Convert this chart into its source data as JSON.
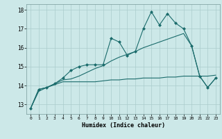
{
  "title": "",
  "xlabel": "Humidex (Indice chaleur)",
  "bg_color": "#cce8e8",
  "grid_color": "#aacccc",
  "line_color": "#1a6b6b",
  "xlim": [
    -0.5,
    23.5
  ],
  "ylim": [
    12.5,
    18.3
  ],
  "yticks": [
    13,
    14,
    15,
    16,
    17,
    18
  ],
  "xticks": [
    0,
    1,
    2,
    3,
    4,
    5,
    6,
    7,
    8,
    9,
    10,
    11,
    12,
    13,
    14,
    15,
    16,
    17,
    18,
    19,
    20,
    21,
    22,
    23
  ],
  "series1_x": [
    0,
    1,
    2,
    3,
    4,
    5,
    6,
    7,
    8,
    9,
    10,
    11,
    12,
    13,
    14,
    15,
    16,
    17,
    18,
    19,
    20,
    21,
    22,
    23
  ],
  "series1_y": [
    12.8,
    13.8,
    13.9,
    14.1,
    14.4,
    14.8,
    15.0,
    15.1,
    15.1,
    15.1,
    16.5,
    16.3,
    15.6,
    15.8,
    17.0,
    17.9,
    17.2,
    17.8,
    17.3,
    17.0,
    16.1,
    14.5,
    13.9,
    14.4
  ],
  "series2_x": [
    0,
    1,
    2,
    3,
    4,
    5,
    6,
    7,
    8,
    9,
    10,
    11,
    12,
    13,
    14,
    15,
    16,
    17,
    18,
    19,
    20,
    21,
    22,
    23
  ],
  "series2_y": [
    12.8,
    13.7,
    13.9,
    14.05,
    14.2,
    14.2,
    14.2,
    14.2,
    14.2,
    14.25,
    14.3,
    14.3,
    14.35,
    14.35,
    14.4,
    14.4,
    14.4,
    14.45,
    14.45,
    14.5,
    14.5,
    14.5,
    14.5,
    14.55
  ],
  "series3_x": [
    0,
    1,
    2,
    3,
    4,
    5,
    6,
    7,
    8,
    9,
    10,
    11,
    12,
    13,
    14,
    15,
    16,
    17,
    18,
    19,
    20,
    21,
    22,
    23
  ],
  "series3_y": [
    12.8,
    13.8,
    13.9,
    14.1,
    14.3,
    14.35,
    14.5,
    14.7,
    14.9,
    15.05,
    15.3,
    15.5,
    15.65,
    15.8,
    16.0,
    16.15,
    16.3,
    16.45,
    16.6,
    16.75,
    16.1,
    14.5,
    13.9,
    14.4
  ]
}
